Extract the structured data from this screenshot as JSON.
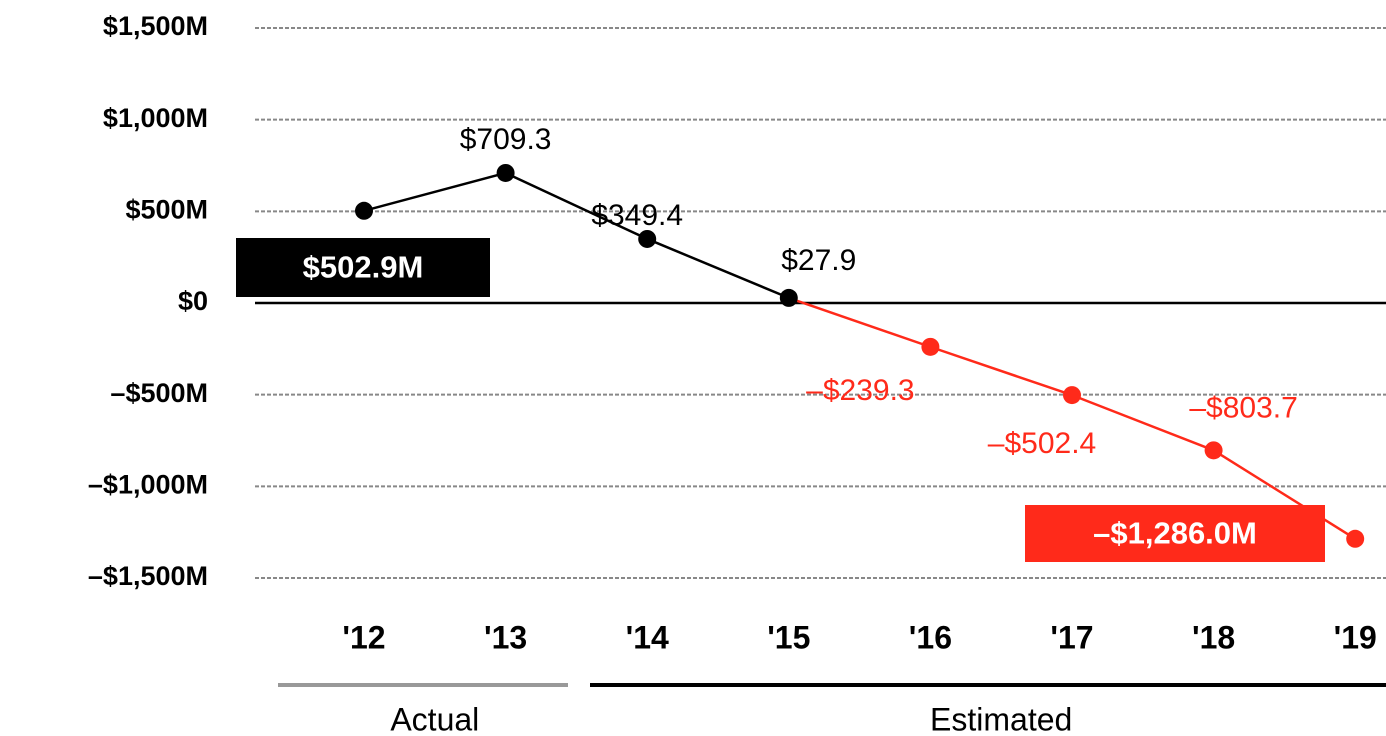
{
  "chart_data": {
    "type": "line",
    "categories": [
      "'12",
      "'13",
      "'14",
      "'15",
      "'16",
      "'17",
      "'18",
      "'19"
    ],
    "values": [
      502.9,
      709.3,
      349.4,
      27.9,
      -239.3,
      -502.4,
      -803.7,
      -1286.0
    ],
    "value_labels": [
      "$502.9M",
      "$709.3",
      "$349.4",
      "$27.9",
      "–$239.3",
      "–$502.4",
      "–$803.7",
      "–$1,286.0M"
    ],
    "point_colors": [
      "#000000",
      "#000000",
      "#000000",
      "#000000",
      "#ff2a1a",
      "#ff2a1a",
      "#ff2a1a",
      "#ff2a1a"
    ],
    "ylim": [
      -1500,
      1500
    ],
    "yticks": [
      {
        "value": -1500,
        "label": "–$1,500M"
      },
      {
        "value": -1000,
        "label": "–$1,000M"
      },
      {
        "value": -500,
        "label": "–$500M"
      },
      {
        "value": 0,
        "label": "$0"
      },
      {
        "value": 500,
        "label": "$500M"
      },
      {
        "value": 1000,
        "label": "$1,000M"
      },
      {
        "value": 1500,
        "label": "$1,500M"
      }
    ],
    "grid": true,
    "groups": [
      {
        "label": "Actual",
        "start": 0,
        "end": 1
      },
      {
        "label": "Estimated",
        "start": 2,
        "end": 7
      }
    ]
  }
}
